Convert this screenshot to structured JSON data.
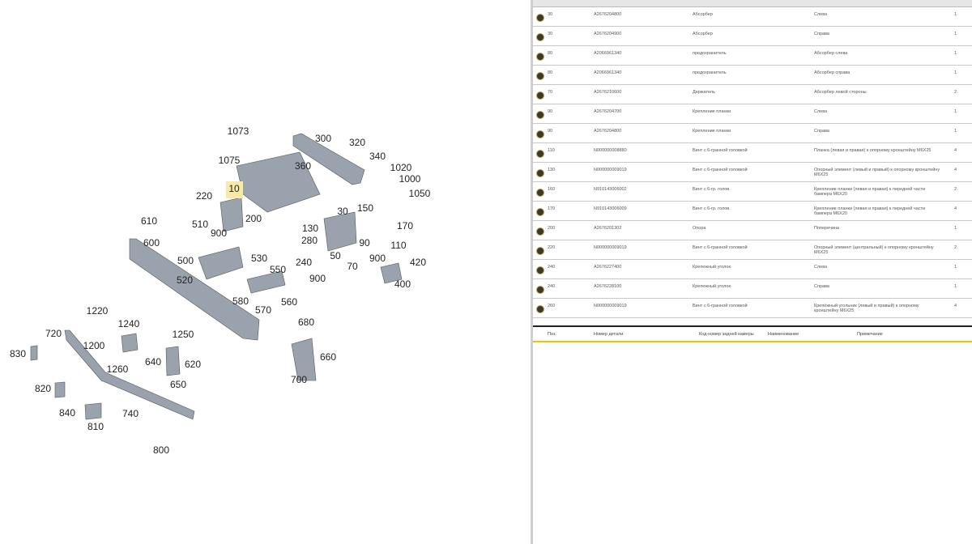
{
  "diagram": {
    "callouts": [
      "1073",
      "1075",
      "10",
      "220",
      "200",
      "300",
      "320",
      "340",
      "360",
      "1020",
      "1000",
      "1050",
      "610",
      "510",
      "900",
      "600",
      "30",
      "150",
      "130",
      "170",
      "280",
      "90",
      "110",
      "500",
      "530",
      "240",
      "50",
      "900",
      "420",
      "550",
      "70",
      "520",
      "900",
      "400",
      "580",
      "560",
      "570",
      "1220",
      "1240",
      "680",
      "720",
      "1250",
      "1200",
      "830",
      "660",
      "640",
      "620",
      "1260",
      "700",
      "650",
      "820",
      "840",
      "740",
      "810",
      "800"
    ]
  },
  "table": {
    "rows": [
      [
        "30",
        "A2676204800",
        "Абсорбер",
        "Слева",
        "1"
      ],
      [
        "30",
        "A2676204900",
        "Абсорбер",
        "Справа",
        "1"
      ],
      [
        "80",
        "A2066961340",
        "предохранитель",
        "Абсорбер слева",
        "1"
      ],
      [
        "80",
        "A2066961340",
        "предохранитель",
        "Абсорбер справа",
        "1"
      ],
      [
        "70",
        "A2676210600",
        "Держатель",
        "Абсорбер левой стороны",
        "2"
      ],
      [
        "90",
        "A2676204700",
        "Крепление планки",
        "Слева",
        "1"
      ],
      [
        "90",
        "A2676204800",
        "Крепление планки",
        "Справа",
        "1"
      ],
      [
        "110",
        "N000000008880",
        "Винт с 6-гранной головкой",
        "Планка (левая и правая) к опорному кронштейну M6X25",
        "4"
      ],
      [
        "130",
        "N000000009019",
        "Винт с 6-гранной головкой",
        "Опорный элемент (левый и правый) к опорному кронштейну M6X25",
        "4"
      ],
      [
        "160",
        "N910143006002",
        "Винт с 6-гр. голов.",
        "Крепление планки (левая и правая) к передней части бампера M6X20",
        "2"
      ],
      [
        "170",
        "N910143006009",
        "Винт с 6-гр. голов.",
        "Крепление планки (левая и правая) к передней части бампера M6X20",
        "4"
      ],
      [
        "200",
        "A2676201302",
        "Опора",
        "Поперечина",
        "1"
      ],
      [
        "220",
        "N000000009019",
        "Винт с 6-гранной головкой",
        "Опорный элемент (центральный) к опорному кронштейну M6X25",
        "2"
      ],
      [
        "240",
        "A2676227400",
        "Крепежный уголок",
        "Слева",
        "1"
      ],
      [
        "240",
        "A2676228100",
        "Крепежный уголок",
        "Справа",
        "1"
      ],
      [
        "260",
        "N000000009019",
        "Винт с 6-гранной головкой",
        "Крепёжный угольник (левый и правый) к опорному кронштейну M6X25",
        "4"
      ]
    ],
    "header": [
      "Поз.",
      "Номер детали",
      "Код-номер задней камеры",
      "Наименование",
      "Примечание"
    ]
  }
}
